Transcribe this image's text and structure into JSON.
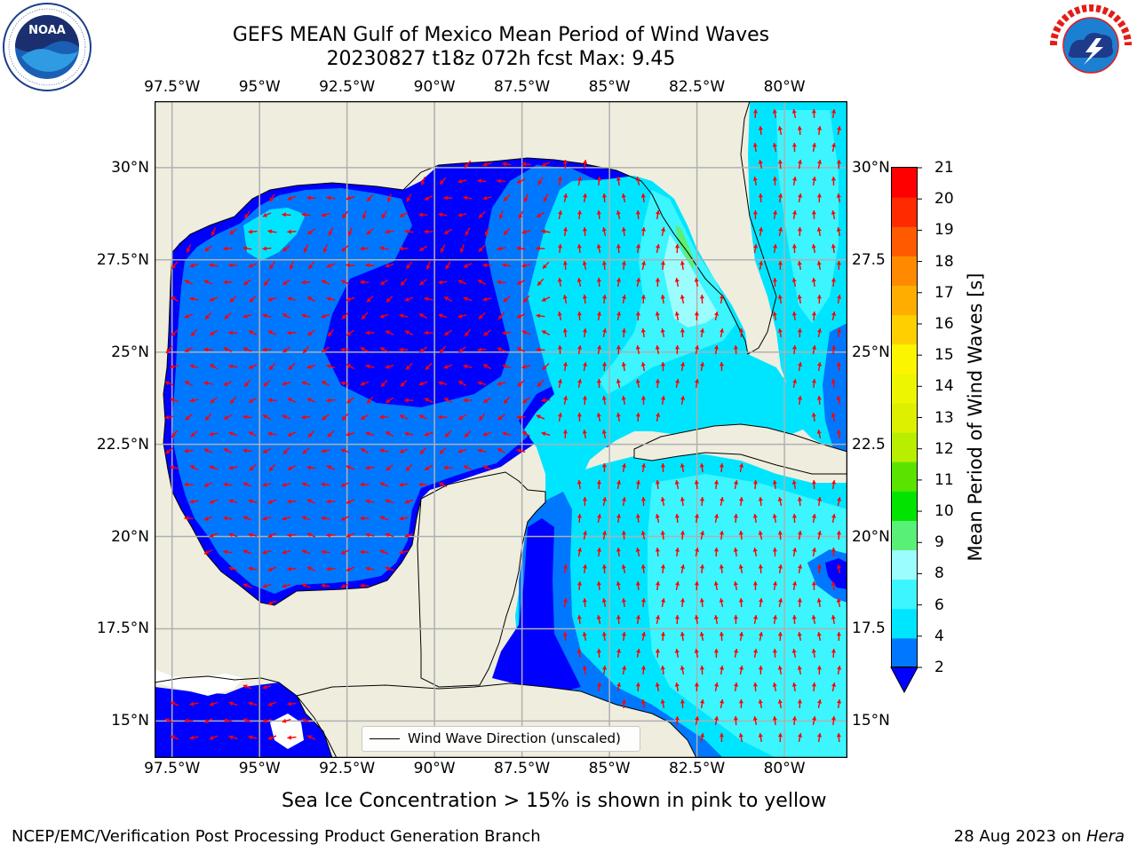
{
  "title": {
    "line1": "GEFS MEAN Gulf of Mexico Mean Period of Wind Waves",
    "line2": "20230827 t18z 072h fcst   Max: 9.45"
  },
  "logos": {
    "left": {
      "name": "NOAA",
      "ring_text": "NATIONAL OCEANIC AND ATMOSPHERIC ADMINISTRATION",
      "bottom_text": "U.S. DEPARTMENT OF COMMERCE"
    },
    "right": {
      "name": "NATIONAL WEATHER SERVICE"
    }
  },
  "map": {
    "lon_labels": [
      "97.5°W",
      "95°W",
      "92.5°W",
      "90°W",
      "87.5°W",
      "85°W",
      "82.5°W",
      "80°W"
    ],
    "lon_values": [
      -97.5,
      -95,
      -92.5,
      -90,
      -87.5,
      -85,
      -82.5,
      -80
    ],
    "lat_labels": [
      "30°N",
      "27.5°N",
      "25°N",
      "22.5°N",
      "20°N",
      "17.5°N",
      "15°N"
    ],
    "lat_labels_right": [
      "30°N",
      "27.5",
      "25°N",
      "22.5",
      "20°N",
      "17.5",
      "15°N"
    ],
    "lat_values": [
      30,
      27.5,
      25,
      22.5,
      20,
      17.5,
      15
    ],
    "extent": {
      "lon": [
        -98,
        -78.2
      ],
      "lat": [
        14,
        31.8
      ]
    },
    "land_color": "#efedde",
    "arrow_color": "#ff0000",
    "grid": true
  },
  "colorbar": {
    "title": "Mean Period of Wind Waves [s]",
    "ticks": [
      "2",
      "4",
      "6",
      "8",
      "9",
      "10",
      "11",
      "12",
      "13",
      "14",
      "15",
      "16",
      "17",
      "18",
      "19",
      "20",
      "21"
    ],
    "extend_color": "#0000ff",
    "colors": [
      "#0077ff",
      "#00e5ff",
      "#3cf5ff",
      "#9cfdff",
      "#59f078",
      "#00e400",
      "#5be300",
      "#b8ee00",
      "#dcf000",
      "#eef500",
      "#fbf600",
      "#ffd000",
      "#ffae00",
      "#ff8a00",
      "#ff5a00",
      "#ff2a00",
      "#ff0000"
    ]
  },
  "legend": {
    "label": "Wind Wave Direction (unscaled)"
  },
  "note": "Sea Ice Concentration > 15% is shown in pink to yellow",
  "footer": {
    "left": "NCEP/EMC/Verification Post Processing Product Generation Branch",
    "right_date": "28 Aug 2023 on ",
    "right_host": "Hera"
  }
}
